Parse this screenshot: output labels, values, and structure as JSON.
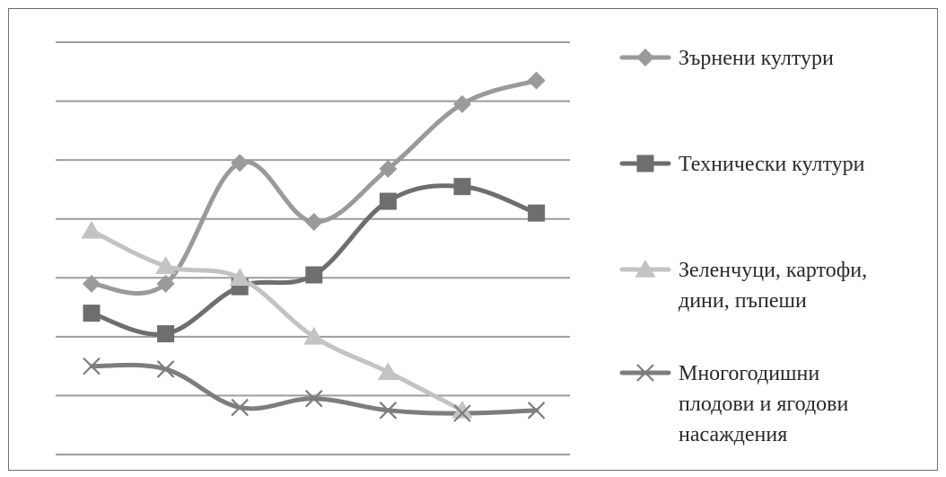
{
  "chart_data": {
    "type": "line",
    "title": "",
    "xlabel": "",
    "ylabel": "",
    "ylim": [
      0,
      7
    ],
    "grid": true,
    "legend_position": "right",
    "x": [
      1,
      2,
      3,
      4,
      5,
      6,
      7
    ],
    "series": [
      {
        "name": "Зърнени култури",
        "label_lines": [
          "Зърнени култури"
        ],
        "marker": "diamond",
        "color": "#9a9a9a",
        "values": [
          2.9,
          2.9,
          4.95,
          3.95,
          4.85,
          5.95,
          6.35
        ]
      },
      {
        "name": "Технически култури",
        "label_lines": [
          "Технически култури"
        ],
        "marker": "square",
        "color": "#6e6e6e",
        "values": [
          2.4,
          2.05,
          2.85,
          3.05,
          4.3,
          4.55,
          4.1
        ]
      },
      {
        "name": "Зеленчуци, картофи, дини, пъпеши",
        "label_lines": [
          "Зеленчуци, картофи,",
          "дини, пъпеши"
        ],
        "marker": "triangle",
        "color": "#c3c3c3",
        "values": [
          3.8,
          3.2,
          3.0,
          2.0,
          1.4,
          0.75,
          null
        ]
      },
      {
        "name": "Многогодишни плодови и ягодови насаждения",
        "label_lines": [
          "Многогодишни",
          "плодови и ягодови",
          "насаждения"
        ],
        "marker": "x",
        "color": "#7d7d7d",
        "values": [
          1.5,
          1.45,
          0.8,
          0.95,
          0.75,
          0.7,
          0.75
        ]
      }
    ]
  }
}
